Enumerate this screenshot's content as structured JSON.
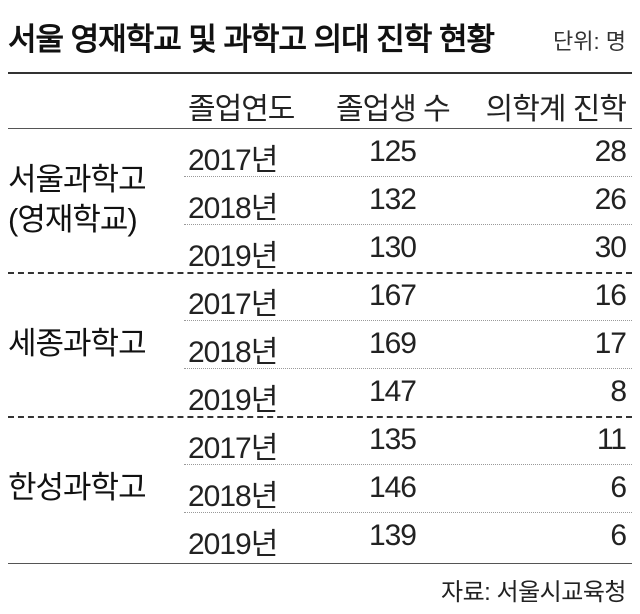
{
  "title": "서울 영재학교 및 과학고 의대 진학 현황",
  "unit": "단위: 명",
  "source": "자료: 서울시교육청",
  "chart_data": {
    "type": "table",
    "title": "서울 영재학교 및 과학고 의대 진학 현황",
    "columns": [
      "졸업연도",
      "졸업생 수",
      "의학계 진학"
    ],
    "groups": [
      {
        "school_lines": [
          "서울과학고",
          "(영재학교)"
        ],
        "rows": [
          {
            "year": "2017년",
            "graduates": 125,
            "medical": 28
          },
          {
            "year": "2018년",
            "graduates": 132,
            "medical": 26
          },
          {
            "year": "2019년",
            "graduates": 130,
            "medical": 30
          }
        ]
      },
      {
        "school_lines": [
          "세종과학고"
        ],
        "rows": [
          {
            "year": "2017년",
            "graduates": 167,
            "medical": 16
          },
          {
            "year": "2018년",
            "graduates": 169,
            "medical": 17
          },
          {
            "year": "2019년",
            "graduates": 147,
            "medical": 8
          }
        ]
      },
      {
        "school_lines": [
          "한성과학고"
        ],
        "rows": [
          {
            "year": "2017년",
            "graduates": 135,
            "medical": 11
          },
          {
            "year": "2018년",
            "graduates": 146,
            "medical": 6
          },
          {
            "year": "2019년",
            "graduates": 139,
            "medical": 6
          }
        ]
      }
    ]
  }
}
